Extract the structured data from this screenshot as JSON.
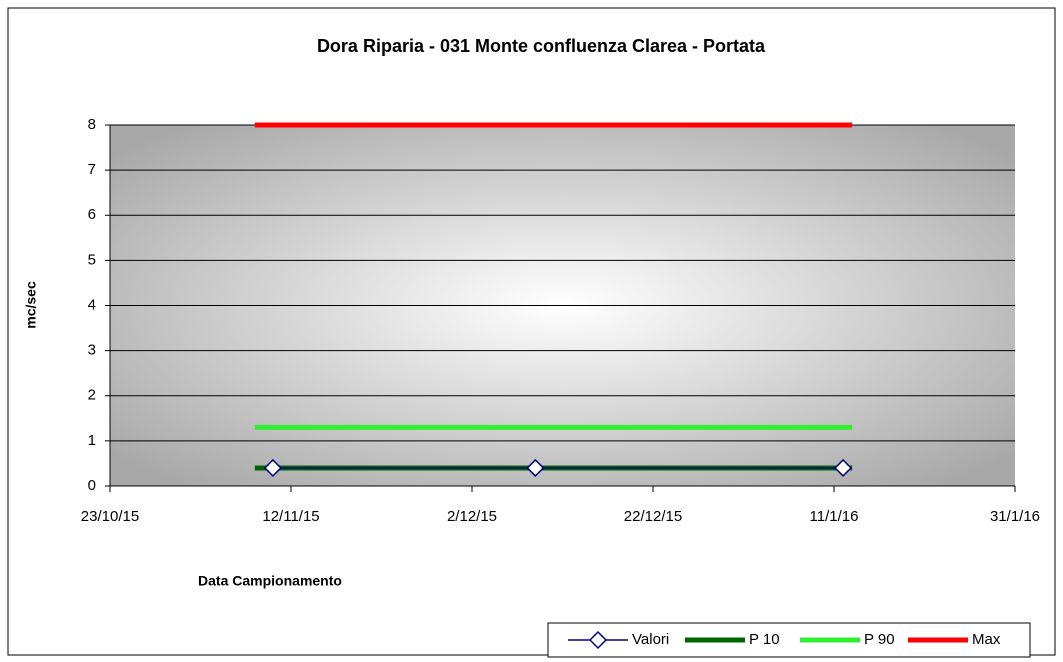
{
  "chart_data": {
    "type": "line",
    "title": "Dora Riparia - 031 Monte confluenza Clarea - Portata",
    "x_label": "Data Campionamento",
    "y_label": "mc/sec",
    "series": [
      {
        "name": "Valori",
        "color": "#000080",
        "marker": "diamond",
        "x": [
          "2015-11-10",
          "2015-12-09",
          "2016-01-12"
        ],
        "values": [
          0.4,
          0.4,
          0.4
        ]
      },
      {
        "name": "P 10",
        "color": "#006400",
        "x": [
          "2015-11-08",
          "2016-01-13"
        ],
        "values": [
          0.4,
          0.4
        ]
      },
      {
        "name": "P 90",
        "color": "#33ee33",
        "x": [
          "2015-11-08",
          "2016-01-13"
        ],
        "values": [
          1.3,
          1.3
        ]
      },
      {
        "name": "Max",
        "color": "#ff0000",
        "x": [
          "2015-11-08",
          "2016-01-13"
        ],
        "values": [
          8,
          8
        ]
      }
    ],
    "xlim": [
      "2015-10-23",
      "2016-01-31"
    ],
    "xticks": [
      {
        "value": "2015-10-23",
        "label": "23/10/15"
      },
      {
        "value": "2015-11-12",
        "label": "12/11/15"
      },
      {
        "value": "2015-12-02",
        "label": "2/12/15"
      },
      {
        "value": "2015-12-22",
        "label": "22/12/15"
      },
      {
        "value": "2016-01-11",
        "label": "11/1/16"
      },
      {
        "value": "2016-01-31",
        "label": "31/1/16"
      }
    ],
    "ylim": [
      0,
      8
    ],
    "yticks": [
      0,
      1,
      2,
      3,
      4,
      5,
      6,
      7,
      8
    ],
    "grid": true,
    "legend": "bottom-right"
  }
}
